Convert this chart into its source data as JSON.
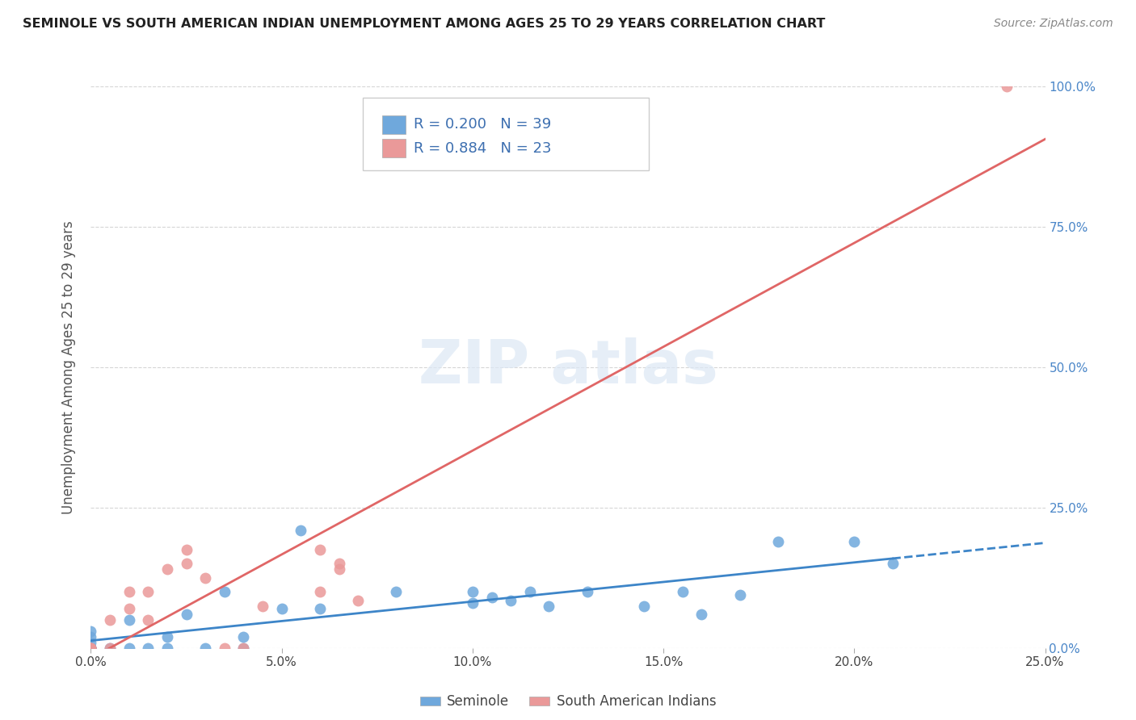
{
  "title": "SEMINOLE VS SOUTH AMERICAN INDIAN UNEMPLOYMENT AMONG AGES 25 TO 29 YEARS CORRELATION CHART",
  "source": "Source: ZipAtlas.com",
  "ylabel": "Unemployment Among Ages 25 to 29 years",
  "xlim": [
    0.0,
    0.25
  ],
  "ylim": [
    0.0,
    1.0
  ],
  "xticks": [
    0.0,
    0.05,
    0.1,
    0.15,
    0.2,
    0.25
  ],
  "xticklabels": [
    "0.0%",
    "5.0%",
    "10.0%",
    "15.0%",
    "20.0%",
    "25.0%"
  ],
  "yticks": [
    0.0,
    0.25,
    0.5,
    0.75,
    1.0
  ],
  "yticklabels": [
    "0.0%",
    "25.0%",
    "50.0%",
    "75.0%",
    "100.0%"
  ],
  "seminole_R": 0.2,
  "seminole_N": 39,
  "south_american_R": 0.884,
  "south_american_N": 23,
  "seminole_color": "#6fa8dc",
  "south_american_color": "#ea9999",
  "seminole_line_color": "#3d85c8",
  "south_american_line_color": "#e06666",
  "background_color": "#ffffff",
  "seminole_x": [
    0.0,
    0.0,
    0.0,
    0.0,
    0.0,
    0.0,
    0.0,
    0.0,
    0.0,
    0.0,
    0.005,
    0.01,
    0.01,
    0.015,
    0.02,
    0.02,
    0.025,
    0.03,
    0.035,
    0.04,
    0.04,
    0.05,
    0.055,
    0.06,
    0.08,
    0.1,
    0.1,
    0.105,
    0.11,
    0.115,
    0.12,
    0.13,
    0.145,
    0.155,
    0.16,
    0.17,
    0.18,
    0.2,
    0.21
  ],
  "seminole_y": [
    0.0,
    0.0,
    0.0,
    0.0,
    0.0,
    0.0,
    0.0,
    0.01,
    0.02,
    0.03,
    0.0,
    0.0,
    0.05,
    0.0,
    0.0,
    0.02,
    0.06,
    0.0,
    0.1,
    0.0,
    0.02,
    0.07,
    0.21,
    0.07,
    0.1,
    0.08,
    0.1,
    0.09,
    0.085,
    0.1,
    0.075,
    0.1,
    0.075,
    0.1,
    0.06,
    0.095,
    0.19,
    0.19,
    0.15
  ],
  "south_american_x": [
    0.0,
    0.0,
    0.0,
    0.0,
    0.005,
    0.005,
    0.01,
    0.01,
    0.015,
    0.015,
    0.02,
    0.025,
    0.025,
    0.03,
    0.035,
    0.04,
    0.045,
    0.06,
    0.06,
    0.065,
    0.065,
    0.07,
    0.24
  ],
  "south_american_y": [
    0.0,
    0.0,
    0.0,
    0.0,
    0.0,
    0.05,
    0.07,
    0.1,
    0.05,
    0.1,
    0.14,
    0.175,
    0.15,
    0.125,
    0.0,
    0.0,
    0.075,
    0.175,
    0.1,
    0.14,
    0.15,
    0.085,
    1.0
  ]
}
